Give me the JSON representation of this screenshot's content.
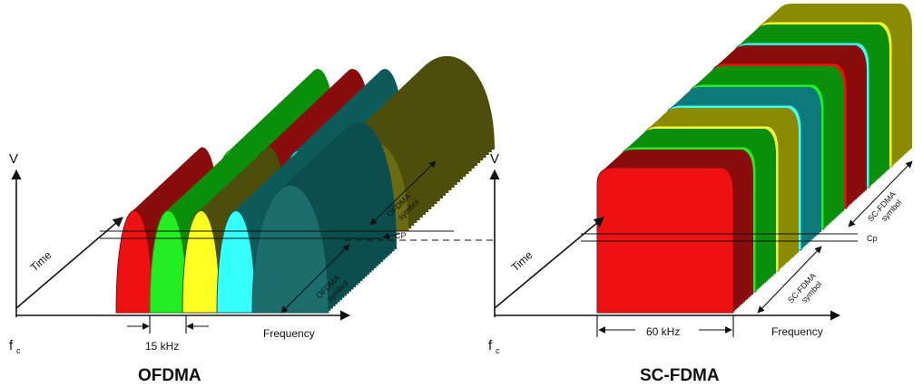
{
  "panels": [
    {
      "title": "OFDMA",
      "v_axis": "V",
      "time_axis": "Time",
      "origin": "f",
      "origin_sub": "c",
      "spacing": "15 kHz",
      "frequency_axis": "Frequency",
      "cp": "CP",
      "symbol_labels": [
        [
          "OFDMA",
          "symbol"
        ],
        [
          "OFDMA",
          "symbol"
        ]
      ]
    },
    {
      "title": "SC-FDMA",
      "v_axis": "V",
      "time_axis": "Time",
      "origin": "f",
      "origin_sub": "c",
      "spacing": "60 kHz",
      "frequency_axis": "Frequency",
      "cp": "Cp",
      "symbol_labels": [
        [
          "SC-FDMA",
          "symbol"
        ],
        [
          "SC-FDMA",
          "symbol"
        ]
      ]
    }
  ]
}
